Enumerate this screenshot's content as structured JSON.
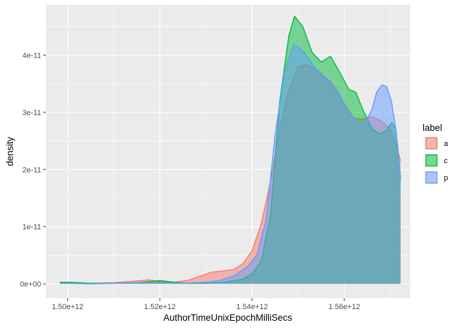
{
  "chart_data": {
    "type": "area",
    "title": "",
    "xlabel": "AuthorTimeUnixEpochMilliSecs",
    "ylabel": "density",
    "xlim": [
      1495300000000.0,
      1574300000000.0
    ],
    "ylim": [
      -2.5e-12,
      4.88e-11
    ],
    "x_ticks": [
      1500000000000.0,
      1520000000000.0,
      1540000000000.0,
      1560000000000.0
    ],
    "x_tick_labels": [
      "1.50e+12",
      "1.52e+12",
      "1.54e+12",
      "1.56e+12"
    ],
    "y_ticks": [
      0,
      1e-11,
      2e-11,
      3e-11,
      4e-11
    ],
    "y_tick_labels": [
      "0e+00",
      "1e-11",
      "2e-11",
      "3e-11",
      "4e-11"
    ],
    "grid": true,
    "legend": {
      "title": "label",
      "position": "right"
    },
    "series": [
      {
        "name": "a",
        "color": "#F8766D",
        "points": [
          [
            1498300000000.0,
            2e-13
          ],
          [
            1500000000000.0,
            2e-13
          ],
          [
            1505000000000.0,
            1e-13
          ],
          [
            1510000000000.0,
            2e-13
          ],
          [
            1515000000000.0,
            5e-13
          ],
          [
            1517500000000.0,
            7e-13
          ],
          [
            1520000000000.0,
            4e-13
          ],
          [
            1523000000000.0,
            3e-13
          ],
          [
            1526000000000.0,
            6e-13
          ],
          [
            1529000000000.0,
            1.4e-12
          ],
          [
            1531000000000.0,
            2e-12
          ],
          [
            1533000000000.0,
            2.2e-12
          ],
          [
            1536000000000.0,
            2.5e-12
          ],
          [
            1538000000000.0,
            3.5e-12
          ],
          [
            1540000000000.0,
            5.8e-12
          ],
          [
            1542000000000.0,
            1.05e-11
          ],
          [
            1544000000000.0,
            1.8e-11
          ],
          [
            1546000000000.0,
            2.7e-11
          ],
          [
            1548000000000.0,
            3.4e-11
          ],
          [
            1550000000000.0,
            3.8e-11
          ],
          [
            1552000000000.0,
            3.83e-11
          ],
          [
            1554000000000.0,
            3.75e-11
          ],
          [
            1556000000000.0,
            3.6e-11
          ],
          [
            1558000000000.0,
            3.4e-11
          ],
          [
            1560000000000.0,
            3.15e-11
          ],
          [
            1562000000000.0,
            2.9e-11
          ],
          [
            1564000000000.0,
            2.88e-11
          ],
          [
            1566000000000.0,
            2.92e-11
          ],
          [
            1568000000000.0,
            2.85e-11
          ],
          [
            1570000000000.0,
            2.7e-11
          ],
          [
            1571200000000.0,
            2.45e-11
          ],
          [
            1572200000000.0,
            2.15e-11
          ]
        ]
      },
      {
        "name": "c",
        "color": "#00BA38",
        "points": [
          [
            1498300000000.0,
            3e-13
          ],
          [
            1500000000000.0,
            3e-13
          ],
          [
            1505000000000.0,
            1e-13
          ],
          [
            1510000000000.0,
            1e-13
          ],
          [
            1515000000000.0,
            2e-13
          ],
          [
            1518000000000.0,
            4e-13
          ],
          [
            1520000000000.0,
            6e-13
          ],
          [
            1523000000000.0,
            3e-13
          ],
          [
            1526000000000.0,
            1e-13
          ],
          [
            1530000000000.0,
            1e-13
          ],
          [
            1534000000000.0,
            3e-13
          ],
          [
            1538000000000.0,
            8e-13
          ],
          [
            1540000000000.0,
            1.8e-12
          ],
          [
            1542000000000.0,
            4e-12
          ],
          [
            1544000000000.0,
            1.2e-11
          ],
          [
            1546000000000.0,
            3.2e-11
          ],
          [
            1548000000000.0,
            4.35e-11
          ],
          [
            1549200000000.0,
            4.68e-11
          ],
          [
            1551000000000.0,
            4.5e-11
          ],
          [
            1553000000000.0,
            4.05e-11
          ],
          [
            1555000000000.0,
            3.88e-11
          ],
          [
            1557000000000.0,
            3.98e-11
          ],
          [
            1559000000000.0,
            3.7e-11
          ],
          [
            1561000000000.0,
            3.4e-11
          ],
          [
            1562500000000.0,
            3.35e-11
          ],
          [
            1564000000000.0,
            3.05e-11
          ],
          [
            1566000000000.0,
            2.72e-11
          ],
          [
            1567500000000.0,
            2.62e-11
          ],
          [
            1569000000000.0,
            2.68e-11
          ],
          [
            1570300000000.0,
            2.82e-11
          ],
          [
            1571200000000.0,
            2.7e-11
          ],
          [
            1572200000000.0,
            1.85e-11
          ]
        ]
      },
      {
        "name": "p",
        "color": "#619CFF",
        "points": [
          [
            1498300000000.0,
            1e-13
          ],
          [
            1500000000000.0,
            1e-13
          ],
          [
            1505000000000.0,
            0.0
          ],
          [
            1510000000000.0,
            1e-13
          ],
          [
            1515000000000.0,
            2e-13
          ],
          [
            1520000000000.0,
            2e-13
          ],
          [
            1525000000000.0,
            1e-13
          ],
          [
            1530000000000.0,
            3e-13
          ],
          [
            1533000000000.0,
            6e-13
          ],
          [
            1536000000000.0,
            1.4e-12
          ],
          [
            1539000000000.0,
            3e-12
          ],
          [
            1541000000000.0,
            5e-12
          ],
          [
            1543000000000.0,
            1.1e-11
          ],
          [
            1545000000000.0,
            2.6e-11
          ],
          [
            1547000000000.0,
            3.7e-11
          ],
          [
            1549000000000.0,
            4.18e-11
          ],
          [
            1551000000000.0,
            4.08e-11
          ],
          [
            1553000000000.0,
            3.85e-11
          ],
          [
            1555000000000.0,
            3.65e-11
          ],
          [
            1557000000000.0,
            3.55e-11
          ],
          [
            1559000000000.0,
            3.3e-11
          ],
          [
            1561000000000.0,
            3e-11
          ],
          [
            1563000000000.0,
            2.8e-11
          ],
          [
            1564500000000.0,
            2.82e-11
          ],
          [
            1566000000000.0,
            3.05e-11
          ],
          [
            1567000000000.0,
            3.35e-11
          ],
          [
            1568200000000.0,
            3.48e-11
          ],
          [
            1569200000000.0,
            3.45e-11
          ],
          [
            1570200000000.0,
            3.2e-11
          ],
          [
            1571000000000.0,
            2.8e-11
          ],
          [
            1571600000000.0,
            2.4e-11
          ],
          [
            1572200000000.0,
            1.8e-11
          ]
        ]
      }
    ]
  }
}
